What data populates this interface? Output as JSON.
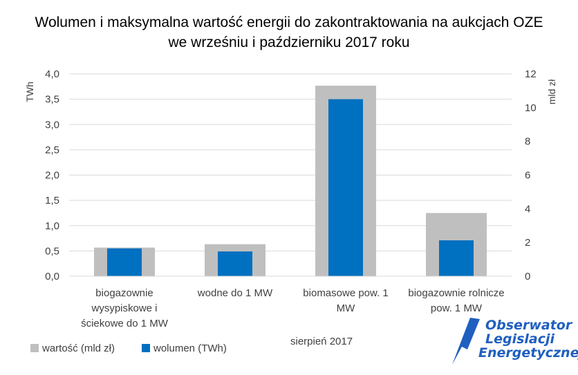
{
  "chart_data": {
    "type": "bar",
    "title_lines": [
      "Wolumen i maksymalna wartość energii do zakontraktowania na aukcjach OZE",
      "we wrześniu i październiku 2017 roku"
    ],
    "categories": [
      [
        "biogazownie",
        "wysypiskowe i",
        "ściekowe do 1 MW"
      ],
      [
        "wodne do 1 MW"
      ],
      [
        "biomasowe pow. 1",
        "MW"
      ],
      [
        "biogazownie rolnicze",
        "pow. 1 MW"
      ]
    ],
    "ylabel_left": "TWh",
    "ylabel_right": "mld zł",
    "ylim_left": [
      0,
      4.0
    ],
    "ylim_right": [
      0,
      12
    ],
    "yticks_left": [
      "0,0",
      "0,5",
      "1,0",
      "1,5",
      "2,0",
      "2,5",
      "3,0",
      "3,5",
      "4,0"
    ],
    "yticks_right": [
      "0",
      "2",
      "4",
      "6",
      "8",
      "10",
      "12"
    ],
    "series": [
      {
        "name": "wartość (mld zł)",
        "axis": "right",
        "color": "#bfbfbf",
        "values": [
          1.7,
          1.9,
          11.3,
          3.75
        ]
      },
      {
        "name": "wolumen (TWh)",
        "axis": "left",
        "color": "#0070c0",
        "values": [
          0.55,
          0.49,
          3.5,
          0.71
        ]
      }
    ],
    "grid": true,
    "legend_position": "bottom-left",
    "annotation": "sierpień 2017"
  },
  "logo": {
    "lines": [
      "Obserwator",
      "Legislacji",
      "Energetycznej"
    ],
    "color": "#1f5fbf"
  }
}
